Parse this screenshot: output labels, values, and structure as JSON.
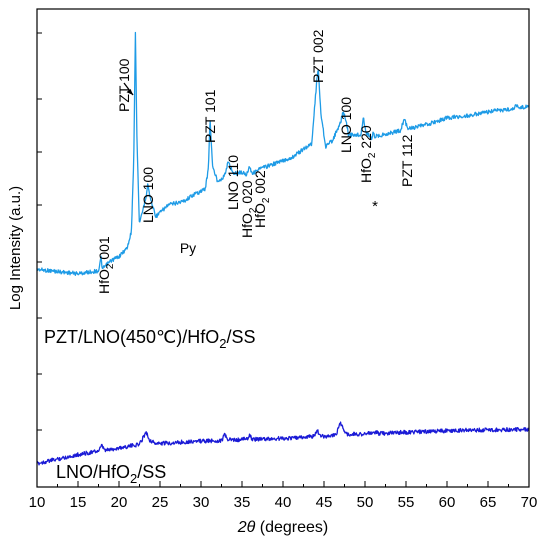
{
  "chart_data": {
    "type": "line",
    "xlabel": "2θ (degrees)",
    "xlabel_italic": "θ",
    "ylabel": "Log Intensity (a.u.)",
    "xlim": [
      10,
      70
    ],
    "x_ticks": [
      10,
      15,
      20,
      25,
      30,
      35,
      40,
      45,
      50,
      55,
      60,
      65,
      70
    ],
    "grid": false,
    "y_scale": "log (arbitrary units, no numeric tick labels)",
    "series": [
      {
        "name": "PZT/LNO(450℃)/HfO₂/SS",
        "color": "#1e9be6",
        "x": [
          10,
          15,
          17.5,
          17.8,
          18,
          18.2,
          19,
          20,
          21,
          21.5,
          21.8,
          22,
          22.2,
          22.5,
          23,
          23.3,
          23.5,
          23.8,
          24.5,
          26,
          28,
          29,
          30.5,
          30.9,
          31.1,
          31.4,
          32,
          32.7,
          33,
          33.3,
          34,
          35,
          35.5,
          35.9,
          36.3,
          37,
          39,
          41,
          43.5,
          44,
          44.3,
          44.6,
          45.2,
          46,
          47,
          47.3,
          47.6,
          48,
          49.5,
          49.8,
          50.1,
          50.8,
          51,
          51.2,
          52,
          54.3,
          54.8,
          55.2,
          56,
          58,
          60,
          62,
          64,
          66,
          68,
          68.5,
          69,
          70
        ],
        "y": [
          0.17,
          0.155,
          0.165,
          0.21,
          0.168,
          0.178,
          0.2,
          0.215,
          0.245,
          0.3,
          0.55,
          1.0,
          0.6,
          0.325,
          0.39,
          0.425,
          0.47,
          0.42,
          0.355,
          0.395,
          0.41,
          0.43,
          0.45,
          0.52,
          0.7,
          0.53,
          0.48,
          0.49,
          0.51,
          0.545,
          0.505,
          0.51,
          0.5,
          0.53,
          0.505,
          0.52,
          0.54,
          0.56,
          0.61,
          0.79,
          0.88,
          0.72,
          0.6,
          0.62,
          0.68,
          0.72,
          0.7,
          0.64,
          0.64,
          0.7,
          0.65,
          0.63,
          0.645,
          0.635,
          0.64,
          0.655,
          0.695,
          0.665,
          0.665,
          0.68,
          0.7,
          0.705,
          0.715,
          0.725,
          0.73,
          0.745,
          0.735,
          0.74
        ]
      },
      {
        "name": "LNO/HfO₂/SS",
        "color": "#1a1ad6",
        "x": [
          10,
          15,
          17.5,
          17.9,
          18.3,
          20,
          22.5,
          23.3,
          23.7,
          24.5,
          26,
          29,
          32.5,
          32.9,
          33.3,
          34,
          35,
          35.3,
          35.6,
          35.9,
          36.3,
          38,
          42,
          43.8,
          44.2,
          44.6,
          45.5,
          46.5,
          46.9,
          47.2,
          47.8,
          49,
          51,
          51.3,
          51.6,
          54,
          57,
          60,
          63,
          66,
          70
        ],
        "y": [
          0.03,
          0.09,
          0.115,
          0.15,
          0.118,
          0.135,
          0.16,
          0.245,
          0.19,
          0.165,
          0.168,
          0.18,
          0.185,
          0.225,
          0.19,
          0.19,
          0.19,
          0.2,
          0.195,
          0.218,
          0.195,
          0.195,
          0.205,
          0.215,
          0.25,
          0.215,
          0.215,
          0.225,
          0.31,
          0.28,
          0.228,
          0.228,
          0.235,
          0.245,
          0.232,
          0.24,
          0.245,
          0.252,
          0.256,
          0.258,
          0.262
        ]
      }
    ],
    "annotations": [
      {
        "text": "PZT 100",
        "x": 22,
        "arrow": true
      },
      {
        "text": "LNO 100",
        "x": 23.5
      },
      {
        "text": "HfO2 001",
        "x": 17.8
      },
      {
        "text": "Py",
        "x": 29
      },
      {
        "text": "PZT 101",
        "x": 31.1
      },
      {
        "text": "LNO 110",
        "x": 33.3
      },
      {
        "text": "HfO2 020",
        "x": 34.8
      },
      {
        "text": "HfO2 002",
        "x": 35.9
      },
      {
        "text": "PZT 002",
        "x": 44.3
      },
      {
        "text": "LNO 100",
        "x": 47.3
      },
      {
        "text": "HfO2 220",
        "x": 50
      },
      {
        "text": "*",
        "x": 51.2
      },
      {
        "text": "PZT 112",
        "x": 55
      }
    ]
  }
}
